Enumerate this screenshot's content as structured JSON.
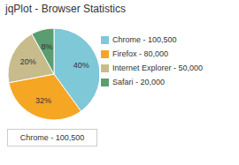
{
  "chart_data": {
    "type": "pie",
    "title": "jqPlot - Browser Statistics",
    "categories": [
      "Chrome - 100,500",
      "Firefox - 80,000",
      "Internet Explorer - 50,000",
      "Safari - 20,000"
    ],
    "values": [
      40,
      32,
      20,
      8
    ],
    "value_labels": [
      "40%",
      "32%",
      "20%",
      "8%"
    ],
    "colors": [
      "#7EC8D8",
      "#F5A623",
      "#C8BC8C",
      "#5A9E6F"
    ],
    "data_labels": true,
    "legend": "right",
    "annotations": [
      "Chrome - 100,500"
    ]
  }
}
